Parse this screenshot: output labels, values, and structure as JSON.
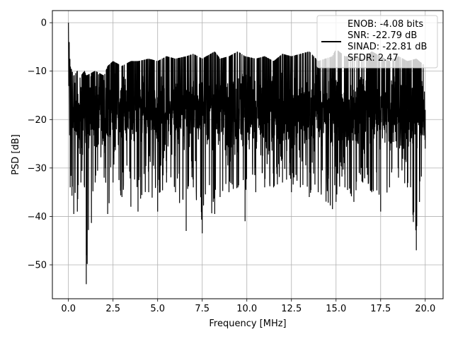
{
  "chart_data": {
    "type": "line",
    "xlabel": "Frequency [MHz]",
    "ylabel": "PSD [dB]",
    "xlim": [
      -0.9,
      21.0
    ],
    "ylim": [
      -57.0,
      2.5
    ],
    "xticks": [
      0.0,
      2.5,
      5.0,
      7.5,
      10.0,
      12.5,
      15.0,
      17.5,
      20.0
    ],
    "xtick_labels": [
      "0.0",
      "2.5",
      "5.0",
      "7.5",
      "10.0",
      "12.5",
      "15.0",
      "17.5",
      "20.0"
    ],
    "yticks": [
      0,
      -10,
      -20,
      -30,
      -40,
      -50
    ],
    "ytick_labels": [
      "0",
      "−10",
      "−20",
      "−30",
      "−40",
      "−50"
    ],
    "grid": true,
    "legend": {
      "placement": "top-right",
      "entries": [
        "ENOB: -4.08 bits",
        "SNR: -22.79 dB",
        "SINAD: -22.81 dB",
        "SFDR: 2.47"
      ]
    },
    "series": [
      {
        "color": "#000000",
        "x": [
          0.0,
          0.1,
          0.3,
          0.5,
          0.7,
          0.9,
          1.0,
          1.5,
          2.0,
          2.2,
          2.5,
          3.0,
          3.5,
          3.9,
          4.5,
          5.0,
          5.5,
          6.0,
          6.6,
          7.0,
          7.5,
          8.2,
          8.5,
          9.0,
          9.5,
          9.9,
          10.5,
          11.0,
          11.5,
          12.0,
          12.5,
          13.0,
          13.5,
          14.0,
          14.8,
          15.0,
          15.5,
          16.0,
          16.5,
          17.0,
          17.5,
          18.0,
          18.5,
          19.0,
          19.5,
          20.0
        ],
        "lower": [
          0.0,
          -34.0,
          -39.5,
          -39.0,
          -33.0,
          -34.0,
          -54.0,
          -33.0,
          -32.0,
          -39.5,
          -33.0,
          -36.0,
          -38.0,
          -39.0,
          -35.0,
          -39.0,
          -33.0,
          -35.0,
          -43.0,
          -34.0,
          -43.5,
          -39.5,
          -36.0,
          -35.0,
          -34.0,
          -41.0,
          -35.0,
          -34.0,
          -34.0,
          -33.0,
          -35.0,
          -34.0,
          -36.0,
          -35.0,
          -38.5,
          -37.0,
          -34.0,
          -37.0,
          -33.0,
          -35.0,
          -39.0,
          -34.0,
          -32.0,
          -34.0,
          -47.0,
          -26.0
        ],
        "upper": [
          0.0,
          -9.0,
          -11.0,
          -10.0,
          -11.0,
          -10.0,
          -11.0,
          -10.0,
          -11.0,
          -9.0,
          -8.0,
          -9.0,
          -8.0,
          -8.0,
          -7.5,
          -8.0,
          -7.0,
          -7.5,
          -7.0,
          -6.5,
          -7.5,
          -6.0,
          -7.5,
          -7.0,
          -6.0,
          -7.0,
          -7.5,
          -7.0,
          -8.0,
          -6.5,
          -7.0,
          -6.5,
          -6.0,
          -8.0,
          -7.0,
          -5.5,
          -7.0,
          -7.0,
          -7.5,
          -6.0,
          -7.0,
          -8.0,
          -7.0,
          -8.0,
          -7.5,
          -9.0
        ],
        "mid_low": -24.0,
        "mid_high": -13.0
      }
    ]
  }
}
